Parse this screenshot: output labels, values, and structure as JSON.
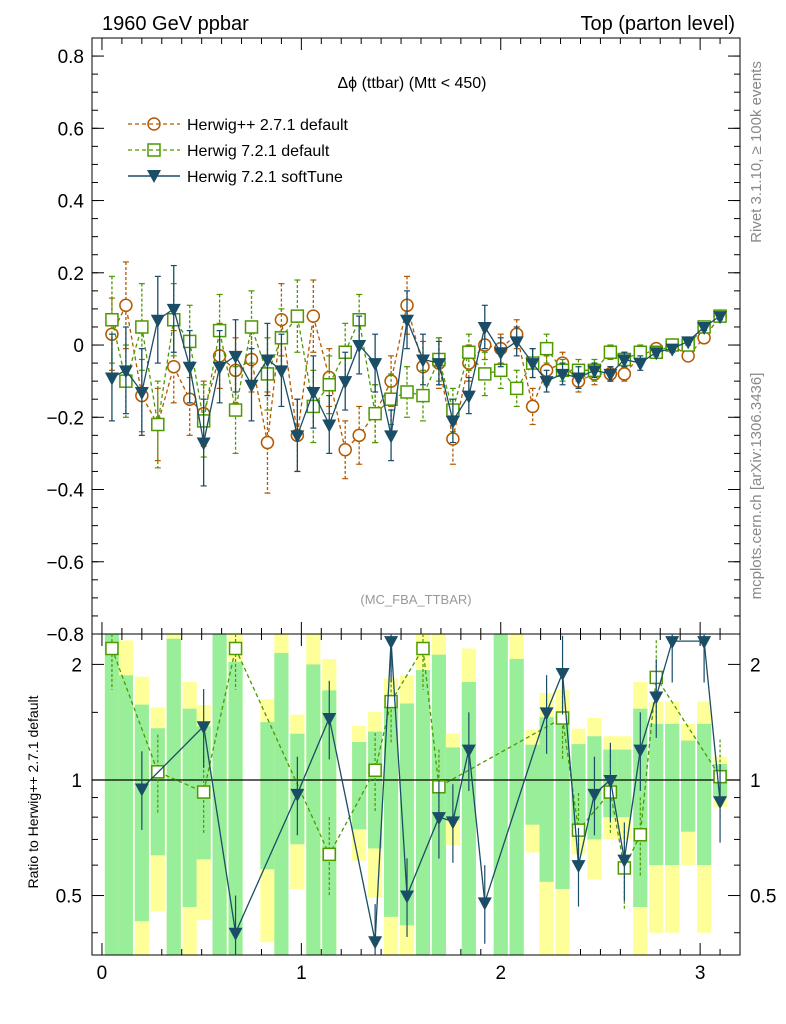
{
  "header": {
    "left": "1960 GeV ppbar",
    "right": "Top (parton level)"
  },
  "side": {
    "top": "Rivet 3.1.10, ≥ 100k events",
    "bottom": "mcplots.cern.ch [arXiv:1306.3436]"
  },
  "chart_data": [
    {
      "type": "line",
      "panel": "main",
      "title": "Δϕ (ttbar) (Mtt < 450)",
      "watermark": "(MC_FBA_TTBAR)",
      "xlabel": "",
      "ylabel": "",
      "xlim": [
        -0.05,
        3.2
      ],
      "ylim": [
        -0.8,
        0.85
      ],
      "yticks": [
        -0.8,
        -0.6,
        -0.4,
        -0.2,
        0,
        0.2,
        0.4,
        0.6,
        0.8
      ],
      "ytick_labels": [
        "−0.8",
        "−0.6",
        "−0.4",
        "−0.2",
        "0",
        "0.2",
        "0.4",
        "0.6",
        "0.8"
      ],
      "xticks": [
        0,
        1,
        2,
        3
      ],
      "legend": "top-left",
      "series": [
        {
          "name": "Herwig++ 2.7.1 default",
          "color": "#b35900",
          "marker": "circle",
          "dashed": true,
          "x": [
            0.05,
            0.12,
            0.2,
            0.28,
            0.36,
            0.44,
            0.51,
            0.59,
            0.67,
            0.75,
            0.83,
            0.9,
            0.98,
            1.06,
            1.14,
            1.22,
            1.29,
            1.37,
            1.45,
            1.53,
            1.61,
            1.69,
            1.76,
            1.84,
            1.92,
            2.0,
            2.08,
            2.16,
            2.23,
            2.31,
            2.39,
            2.47,
            2.55,
            2.62,
            2.7,
            2.78,
            2.86,
            2.94,
            3.02,
            3.1
          ],
          "y": [
            0.03,
            0.11,
            -0.14,
            -0.22,
            -0.06,
            -0.15,
            -0.19,
            -0.03,
            -0.07,
            -0.04,
            -0.27,
            0.07,
            -0.25,
            0.08,
            -0.09,
            -0.29,
            -0.25,
            -0.19,
            -0.1,
            0.11,
            -0.06,
            -0.05,
            -0.26,
            -0.05,
            0.0,
            -0.01,
            0.03,
            -0.17,
            -0.07,
            -0.05,
            -0.1,
            -0.08,
            -0.08,
            -0.08,
            -0.03,
            -0.01,
            0.0,
            -0.03,
            0.02,
            0.08
          ],
          "err": [
            0.1,
            0.12,
            0.1,
            0.1,
            0.1,
            0.1,
            0.09,
            0.09,
            0.09,
            0.09,
            0.14,
            0.1,
            0.1,
            0.1,
            0.08,
            0.08,
            0.08,
            0.08,
            0.07,
            0.08,
            0.07,
            0.07,
            0.07,
            0.05,
            0.04,
            0.04,
            0.04,
            0.05,
            0.04,
            0.03,
            0.03,
            0.03,
            0.02,
            0.02,
            0.02,
            0.01,
            0.01,
            0.01,
            0.01,
            0.01
          ]
        },
        {
          "name": "Herwig 7.2.1 default",
          "color": "#4c9900",
          "marker": "square",
          "dashed": true,
          "x": [
            0.05,
            0.12,
            0.2,
            0.28,
            0.36,
            0.44,
            0.51,
            0.59,
            0.67,
            0.75,
            0.83,
            0.9,
            0.98,
            1.06,
            1.14,
            1.22,
            1.29,
            1.37,
            1.45,
            1.53,
            1.61,
            1.69,
            1.76,
            1.84,
            1.92,
            2.0,
            2.08,
            2.16,
            2.23,
            2.31,
            2.39,
            2.47,
            2.55,
            2.62,
            2.7,
            2.78,
            2.86,
            2.94,
            3.02,
            3.1
          ],
          "y": [
            0.07,
            -0.1,
            0.05,
            -0.22,
            0.07,
            0.01,
            -0.21,
            0.04,
            -0.18,
            0.05,
            -0.08,
            0.02,
            0.08,
            -0.17,
            -0.11,
            -0.02,
            0.07,
            -0.19,
            -0.15,
            -0.13,
            -0.14,
            -0.04,
            -0.18,
            -0.02,
            -0.08,
            -0.07,
            -0.12,
            -0.05,
            -0.01,
            -0.07,
            -0.07,
            -0.07,
            -0.02,
            -0.04,
            -0.02,
            -0.02,
            0.0,
            0.0,
            0.05,
            0.08
          ],
          "err": [
            0.12,
            0.1,
            0.12,
            0.12,
            0.1,
            0.1,
            0.1,
            0.1,
            0.12,
            0.1,
            0.1,
            0.08,
            0.1,
            0.1,
            0.08,
            0.08,
            0.07,
            0.08,
            0.07,
            0.07,
            0.07,
            0.06,
            0.06,
            0.05,
            0.06,
            0.05,
            0.05,
            0.04,
            0.04,
            0.03,
            0.03,
            0.03,
            0.02,
            0.02,
            0.02,
            0.01,
            0.01,
            0.01,
            0.01,
            0.01
          ]
        },
        {
          "name": "Herwig 7.2.1 softTune",
          "color": "#1a4d66",
          "marker": "triangle-down",
          "dashed": false,
          "x": [
            0.05,
            0.12,
            0.2,
            0.28,
            0.36,
            0.44,
            0.51,
            0.59,
            0.67,
            0.75,
            0.83,
            0.9,
            0.98,
            1.06,
            1.14,
            1.22,
            1.29,
            1.37,
            1.45,
            1.53,
            1.61,
            1.69,
            1.76,
            1.84,
            1.92,
            2.0,
            2.08,
            2.16,
            2.23,
            2.31,
            2.39,
            2.47,
            2.55,
            2.62,
            2.7,
            2.78,
            2.86,
            2.94,
            3.02,
            3.1
          ],
          "y": [
            -0.09,
            -0.07,
            -0.13,
            0.07,
            0.1,
            -0.06,
            -0.27,
            -0.06,
            -0.03,
            -0.11,
            -0.04,
            -0.07,
            -0.25,
            -0.13,
            -0.22,
            -0.1,
            0.0,
            -0.05,
            -0.25,
            0.07,
            -0.04,
            -0.05,
            -0.21,
            -0.14,
            0.05,
            -0.02,
            0.01,
            -0.05,
            -0.1,
            -0.08,
            -0.09,
            -0.07,
            -0.08,
            -0.04,
            -0.05,
            -0.02,
            -0.01,
            0.01,
            0.05,
            0.08
          ],
          "err": [
            0.12,
            0.12,
            0.12,
            0.12,
            0.12,
            0.1,
            0.12,
            0.1,
            0.1,
            0.1,
            0.1,
            0.1,
            0.1,
            0.1,
            0.08,
            0.08,
            0.08,
            0.08,
            0.07,
            0.08,
            0.07,
            0.06,
            0.06,
            0.05,
            0.06,
            0.04,
            0.04,
            0.04,
            0.03,
            0.03,
            0.03,
            0.02,
            0.02,
            0.02,
            0.02,
            0.01,
            0.01,
            0.01,
            0.01,
            0.01
          ]
        }
      ]
    },
    {
      "type": "line",
      "panel": "ratio",
      "ylabel": "Ratio to Herwig++ 2.7.1 default",
      "xlim": [
        -0.05,
        3.2
      ],
      "ylim": [
        0.35,
        2.4
      ],
      "yscale": "log",
      "yticks": [
        0.5,
        1,
        2
      ],
      "ytick_labels": [
        "0.5",
        "1",
        "2"
      ],
      "xticks": [
        0,
        1,
        2,
        3
      ],
      "xtick_labels": [
        "0",
        "1",
        "2",
        "3"
      ],
      "reference": 1,
      "band_colors": {
        "inner": "#99ee99",
        "outer": "#ffff99"
      },
      "series": [
        {
          "name": "Herwig 7.2.1 default",
          "color": "#4c9900",
          "marker": "square",
          "dashed": true,
          "x": [
            0.05,
            0.28,
            0.51,
            0.67,
            1.14,
            1.37,
            1.45,
            1.61,
            1.69,
            2.31,
            2.39,
            2.55,
            2.62,
            2.7,
            2.78,
            3.1
          ],
          "y": [
            2.2,
            1.05,
            0.93,
            2.2,
            0.64,
            1.06,
            1.6,
            2.2,
            0.96,
            1.45,
            0.74,
            0.93,
            0.59,
            0.72,
            1.85,
            1.02
          ]
        },
        {
          "name": "Herwig 7.2.1 softTune",
          "color": "#1a4d66",
          "marker": "triangle-down",
          "dashed": false,
          "x": [
            0.2,
            0.51,
            0.67,
            0.98,
            1.14,
            1.37,
            1.45,
            1.53,
            1.69,
            1.76,
            1.84,
            1.92,
            2.23,
            2.31,
            2.39,
            2.47,
            2.55,
            2.62,
            2.7,
            2.78,
            2.86,
            3.02,
            3.1
          ],
          "y": [
            0.95,
            1.38,
            0.4,
            0.92,
            1.45,
            0.38,
            2.3,
            0.5,
            0.8,
            0.78,
            1.2,
            0.48,
            1.5,
            1.9,
            0.6,
            0.92,
            1.0,
            0.62,
            1.2,
            1.65,
            2.3,
            2.3,
            0.88
          ]
        }
      ]
    }
  ]
}
